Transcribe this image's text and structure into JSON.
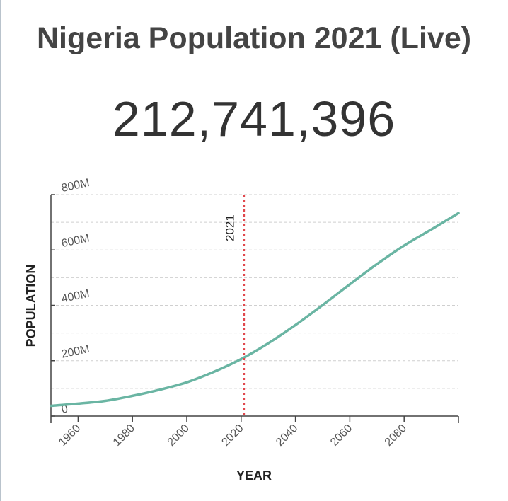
{
  "page": {
    "title": "Nigeria Population 2021 (Live)",
    "counter": "212,741,396"
  },
  "chart_data": {
    "type": "line",
    "xlabel": "YEAR",
    "ylabel": "POPULATION",
    "xlim": [
      1950,
      2100
    ],
    "ylim": [
      0,
      800
    ],
    "x_ticks": [
      1960,
      1980,
      2000,
      2020,
      2040,
      2060,
      2080
    ],
    "x_tick_labels": [
      "1960",
      "1980",
      "2000",
      "2020",
      "2040",
      "2060",
      "2080"
    ],
    "y_ticks": [
      0,
      200,
      400,
      600,
      800
    ],
    "y_tick_labels": [
      "0",
      "200M",
      "400M",
      "600M",
      "800M"
    ],
    "y_gridlines": [
      100,
      200,
      300,
      400,
      500,
      600,
      700,
      800
    ],
    "grid": "horizontal-dashed",
    "annotation": {
      "x": 2021,
      "label": "2021",
      "color": "#e0474c"
    },
    "series": [
      {
        "color": "#6ab5a3",
        "x": [
          1950,
          1960,
          1970,
          1980,
          1990,
          2000,
          2010,
          2020,
          2030,
          2040,
          2050,
          2060,
          2070,
          2080,
          2090,
          2100
        ],
        "values": [
          37,
          45,
          55,
          73,
          95,
          122,
          160,
          206,
          263,
          329,
          401,
          476,
          549,
          616,
          674,
          733
        ]
      }
    ]
  }
}
